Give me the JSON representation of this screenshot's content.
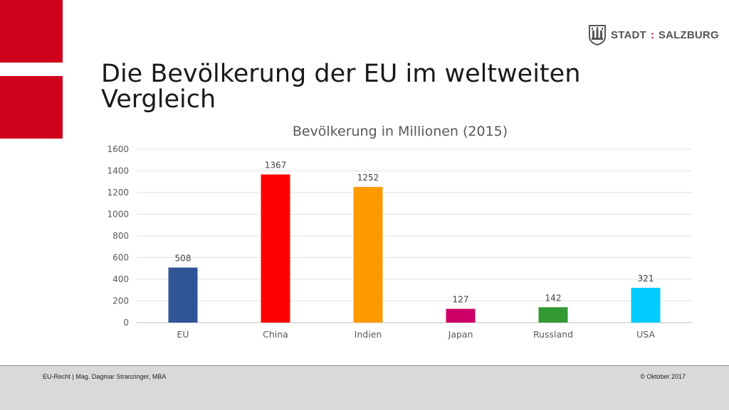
{
  "slide": {
    "title_line1": "Die Bevölkerung der EU im weltweiten",
    "title_line2": "Vergleich",
    "brand_left": "STADT",
    "brand_sep": ":",
    "brand_right": "SALZBURG",
    "footer_left": "EU-Recht | Mag. Dagmar Stranzinger, MBA",
    "footer_right": "© Oktober 2017",
    "accent_color": "#d0021b"
  },
  "chart_data": {
    "type": "bar",
    "title": "Bevölkerung in Millionen (2015)",
    "categories": [
      "EU",
      "China",
      "Indien",
      "Japan",
      "Russland",
      "USA"
    ],
    "values": [
      508,
      1367,
      1252,
      127,
      142,
      321
    ],
    "colors": [
      "#2f5597",
      "#ff0000",
      "#ff9900",
      "#cc0066",
      "#339933",
      "#00ccff"
    ],
    "ylim": [
      0,
      1600
    ],
    "yticks": [
      0,
      200,
      400,
      600,
      800,
      1000,
      1200,
      1400,
      1600
    ],
    "grid": true,
    "xlabel": "",
    "ylabel": ""
  }
}
